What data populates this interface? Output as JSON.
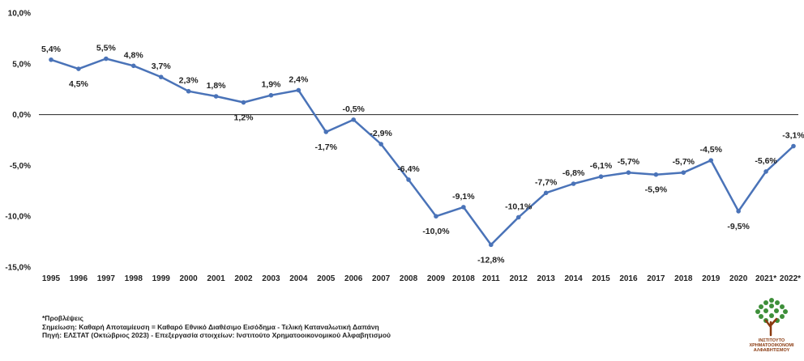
{
  "chart_data": {
    "type": "line",
    "x": [
      "1995",
      "1996",
      "1997",
      "1998",
      "1999",
      "2000",
      "2001",
      "2002",
      "2003",
      "2004",
      "2005",
      "2006",
      "2007",
      "2008",
      "2009",
      "20108",
      "2011",
      "2012",
      "2013",
      "2014",
      "2015",
      "2016",
      "2017",
      "2018",
      "2019",
      "2020",
      "2021*",
      "2022*"
    ],
    "values": [
      5.4,
      4.5,
      5.5,
      4.8,
      3.7,
      2.3,
      1.8,
      1.2,
      1.9,
      2.4,
      -1.7,
      -0.5,
      -2.9,
      -6.4,
      -10.0,
      -9.1,
      -12.8,
      -10.1,
      -7.7,
      -6.8,
      -6.1,
      -5.7,
      -5.9,
      -5.7,
      -4.5,
      -9.5,
      -5.6,
      -3.1
    ],
    "labels": [
      "5,4%",
      "4,5%",
      "5,5%",
      "4,8%",
      "3,7%",
      "2,3%",
      "1,8%",
      "1,2%",
      "1,9%",
      "2,4%",
      "-1,7%",
      "-0,5%",
      "-2,9%",
      "-6,4%",
      "-10,0%",
      "-9,1%",
      "-12,8%",
      "-10,1%",
      "-7,7%",
      "-6,8%",
      "-6,1%",
      "-5,7%",
      "-5,9%",
      "-5,7%",
      "-4,5%",
      "-9,5%",
      "-5,6%",
      "-3,1%"
    ],
    "y_ticks": [
      10,
      5,
      0,
      -5,
      -10,
      -15
    ],
    "y_tick_labels": [
      "10,0%",
      "5,0%",
      "0,0%",
      "-5,0%",
      "-10,0%",
      "-15,0%"
    ],
    "ylim": [
      -15,
      10
    ],
    "title": "",
    "xlabel": "",
    "ylabel": "",
    "grid": false,
    "line_color": "#4a73b8"
  },
  "notes": {
    "forecast": "*Προβλέψεις",
    "definition": "Σημείωση: Καθαρή Αποταμίευση = Καθαρό Εθνικό Διαθέσιμο Εισόδημα - Τελική Καταναλωτική Δαπάνη",
    "source": "Πηγή: ΕΛΣΤΑΤ (Οκτώβριος 2023) - Επεξεργασία στοιχείων: Ινστιτούτο Χρηματοοικονομικού Αλφαβητισμού"
  },
  "logo": {
    "line1": "ΙΝΣΤΙΤΟΥΤΟ",
    "line2": "ΧΡΗΜΑΤΟΟΙΚΟΝΟΜΙ",
    "line3": "ΑΛΦΑΒΗΤΙΣΜΟΥ",
    "color": "#3e8f3a"
  }
}
